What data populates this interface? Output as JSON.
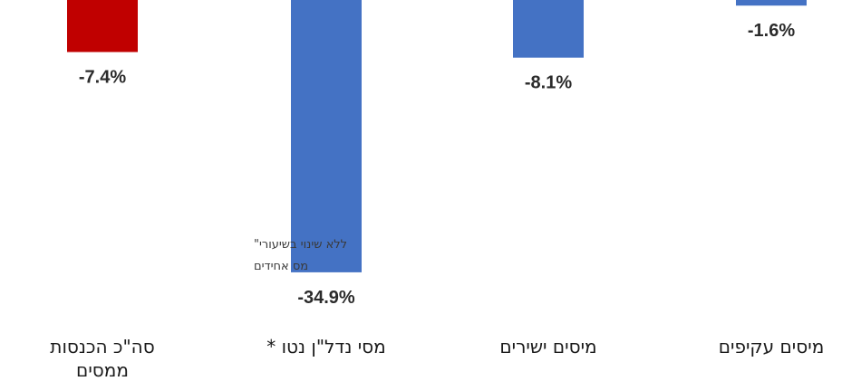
{
  "chart_data": {
    "type": "bar",
    "title": "",
    "xlabel": "",
    "ylabel": "",
    "ylim": [
      -36.5,
      0
    ],
    "grid": false,
    "legend": "none",
    "categories": [
      [
        "סה\"כ הכנסות",
        "ממסים"
      ],
      [
        "מסי נדל\"ן נטו *"
      ],
      [
        "מיסים ישירים"
      ],
      [
        "מיסים עקיפים"
      ]
    ],
    "values": [
      -7.4,
      -34.9,
      -8.1,
      -1.6
    ],
    "value_labels": [
      "-7.4%",
      "-34.9%",
      "-8.1%",
      "-1.6%"
    ],
    "colors": [
      "#c00000",
      "#4472c4",
      "#4472c4",
      "#4472c4"
    ],
    "annotation": [
      "ללא שינוי בשיעורי\"",
      "מס אחידים"
    ]
  }
}
